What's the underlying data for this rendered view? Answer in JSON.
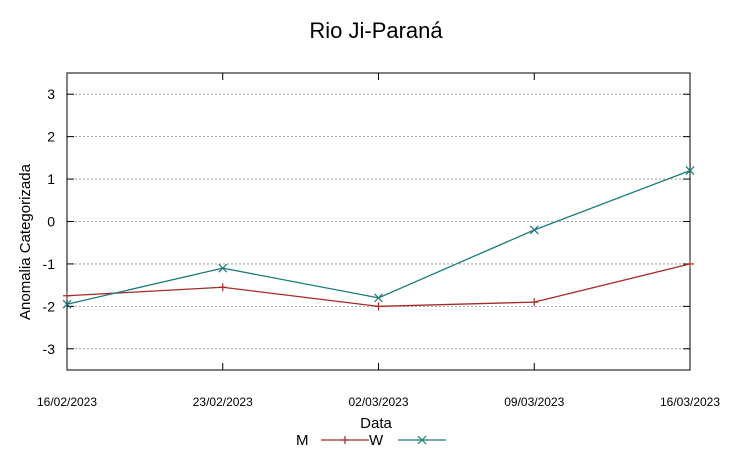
{
  "chart_data": {
    "type": "line",
    "title": "Rio Ji-Paraná",
    "xlabel": "Data",
    "ylabel": "Anomalia Categorizada",
    "categories": [
      "16/02/2023",
      "23/02/2023",
      "02/03/2023",
      "09/03/2023",
      "16/03/2023"
    ],
    "ylim": [
      -3.5,
      3.5
    ],
    "yticks": [
      "3",
      "2",
      "1",
      "0",
      "-1",
      "-2",
      "-3"
    ],
    "grid": true,
    "legend_position": "bottom",
    "series": [
      {
        "name": "M",
        "color": "#a52a2a",
        "marker": "plus",
        "values": [
          -1.75,
          -1.55,
          -2.0,
          -1.9,
          -1.0
        ]
      },
      {
        "name": "W",
        "color": "#1a7a7a",
        "marker": "cross",
        "values": [
          -1.95,
          -1.1,
          -1.8,
          -0.2,
          1.2
        ]
      }
    ]
  }
}
